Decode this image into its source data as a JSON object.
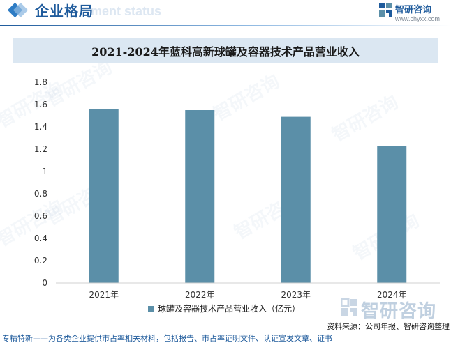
{
  "header": {
    "title": "企业格局",
    "watermark": "ment status"
  },
  "brand": {
    "name": "智研咨询",
    "url": "www.chyxx.com",
    "watermark_text": "智研咨询"
  },
  "chart_data": {
    "type": "bar",
    "title": "2021-2024年蓝科高新球罐及容器技术产品营业收入",
    "categories": [
      "2021年",
      "2022年",
      "2023年",
      "2024年"
    ],
    "series": [
      {
        "name": "球罐及容器技术产品营业收入（亿元）",
        "values": [
          1.56,
          1.55,
          1.49,
          1.23
        ]
      }
    ],
    "xlabel": "",
    "ylabel": "",
    "ylim": [
      0,
      1.8
    ],
    "yticks": [
      "0",
      "0.2",
      "0.4",
      "0.6",
      "0.8",
      "1",
      "1.2",
      "1.4",
      "1.6",
      "1.8"
    ],
    "grid": false,
    "legend_position": "bottom",
    "bar_color": "#5b8fa8"
  },
  "source": "资料来源：公司年报、智研咨询整理",
  "footer": {
    "text": "专精特新——为各类企业提供市占率相关材料，包括报告、市占率证明文件、认证宣发文章、证书"
  },
  "colors": {
    "accent": "#1f5b9c",
    "title_band": "#dbe7f2",
    "bar": "#5b8fa8"
  }
}
